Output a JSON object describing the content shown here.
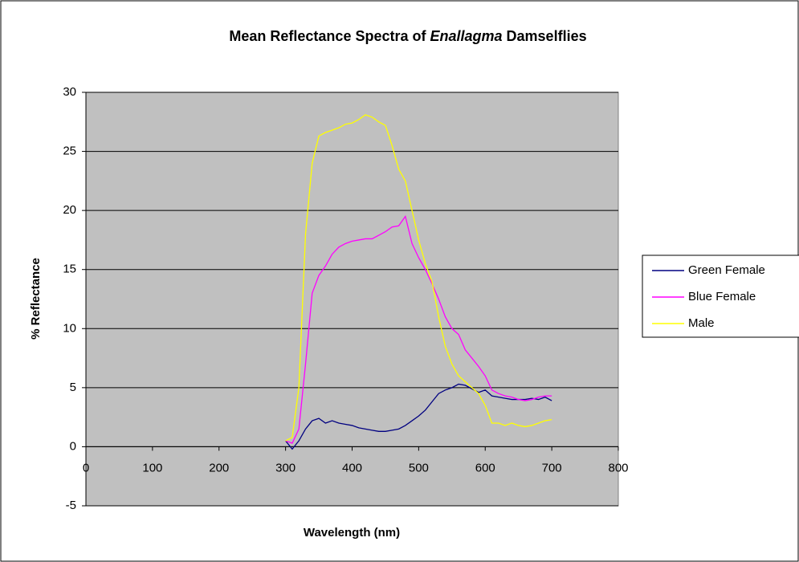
{
  "chart_data": {
    "type": "line",
    "title_parts": [
      "Mean Reflectance Spectra of ",
      "Enallagma",
      " Damselflies"
    ],
    "xlabel": "Wavelength (nm)",
    "ylabel": "% Reflectance",
    "xlim": [
      0,
      800
    ],
    "xticks": [
      0,
      100,
      200,
      300,
      400,
      500,
      600,
      700,
      800
    ],
    "ylim": [
      -5,
      30
    ],
    "yticks": [
      -5,
      0,
      5,
      10,
      15,
      20,
      25,
      30
    ],
    "grid": true,
    "legend": "right",
    "x": [
      300,
      310,
      320,
      330,
      340,
      350,
      360,
      370,
      380,
      390,
      400,
      410,
      420,
      430,
      440,
      450,
      460,
      470,
      480,
      490,
      500,
      510,
      520,
      530,
      540,
      550,
      560,
      570,
      580,
      590,
      600,
      610,
      620,
      630,
      640,
      650,
      660,
      670,
      680,
      690,
      700
    ],
    "series": [
      {
        "name": "Green Female",
        "color": "#000080",
        "values": [
          0.5,
          -0.2,
          0.5,
          1.5,
          2.2,
          2.4,
          2,
          2.2,
          2,
          1.9,
          1.8,
          1.6,
          1.5,
          1.4,
          1.3,
          1.3,
          1.4,
          1.5,
          1.8,
          2.2,
          2.6,
          3.1,
          3.8,
          4.5,
          4.8,
          5,
          5.3,
          5.2,
          4.9,
          4.6,
          4.8,
          4.3,
          4.2,
          4.1,
          4,
          4,
          4,
          4.1,
          4,
          4.2,
          3.9
        ]
      },
      {
        "name": "Blue Female",
        "color": "#ff00ff",
        "values": [
          0.5,
          0.3,
          1.5,
          7,
          13,
          14.5,
          15.3,
          16.3,
          16.9,
          17.2,
          17.4,
          17.5,
          17.6,
          17.6,
          17.9,
          18.2,
          18.6,
          18.7,
          19.5,
          17.2,
          16,
          15,
          13.8,
          12.5,
          11,
          10,
          9.5,
          8.2,
          7.5,
          6.8,
          6,
          4.8,
          4.5,
          4.3,
          4.2,
          4,
          3.9,
          4,
          4.2,
          4.3,
          4.3
        ]
      },
      {
        "name": "Male",
        "color": "#ffff00",
        "values": [
          0.5,
          0.8,
          5,
          18,
          24,
          26.3,
          26.6,
          26.8,
          27,
          27.3,
          27.4,
          27.7,
          28.1,
          27.9,
          27.5,
          27.2,
          25.5,
          23.5,
          22.5,
          20,
          17.5,
          15.5,
          14,
          11,
          8.5,
          7,
          6,
          5.5,
          5,
          4.5,
          3.5,
          2,
          2,
          1.8,
          2,
          1.8,
          1.7,
          1.8,
          2,
          2.2,
          2.3
        ]
      }
    ]
  }
}
